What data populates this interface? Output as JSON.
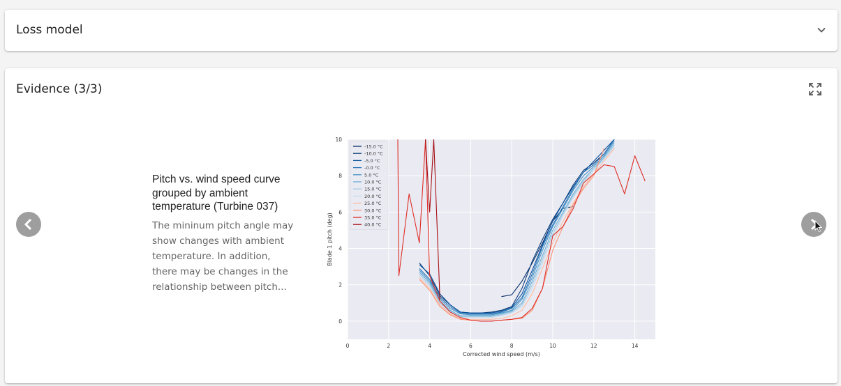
{
  "loss_model": {
    "title": "Loss model"
  },
  "evidence": {
    "title": "Evidence (3/3)",
    "item": {
      "heading": "Pitch vs. wind speed curve grouped by ambient temperature (Turbine 037)",
      "description": "The mininum pitch angle may show changes with ambient temperature. In addition, there may be changes in the relationship between pitch..."
    }
  },
  "icons": {
    "loss_toggle": "chevron-down-icon",
    "fullscreen": "expand-icon",
    "prev": "chevron-left-icon",
    "next": "chevron-right-icon",
    "cursor": "mouse-cursor-icon"
  },
  "colors": {
    "nav_button": "#9e9e9e",
    "plot_background": "#eaeaf2"
  },
  "chart_data": {
    "type": "line",
    "xlabel": "Corrected wind speed (m/s)",
    "ylabel": "Blade 1 pitch (deg)",
    "xlim": [
      0,
      15
    ],
    "ylim": [
      -1,
      10
    ],
    "xticks": [
      0,
      2,
      4,
      6,
      8,
      10,
      12,
      14
    ],
    "yticks": [
      0,
      2,
      4,
      6,
      8,
      10
    ],
    "grid": true,
    "legend_position": "top-left",
    "series": [
      {
        "name": "-15.0 °C",
        "color": "#08306b",
        "x": [
          7.5,
          8,
          8.5,
          9,
          9.5,
          10,
          10.5,
          11
        ],
        "y": [
          1.35,
          1.45,
          2.2,
          3.2,
          4.3,
          5.5,
          6.2,
          6.3
        ]
      },
      {
        "name": "-10.0 °C",
        "color": "#0b3b77",
        "x": [
          3.5,
          4,
          4.5,
          5,
          5.5,
          6,
          6.5,
          7,
          7.5,
          8,
          8.5,
          9,
          9.5,
          10,
          10.5,
          11,
          11.5,
          12,
          12.5,
          13
        ],
        "y": [
          3.2,
          2.5,
          1.4,
          0.9,
          0.5,
          0.45,
          0.45,
          0.5,
          0.6,
          0.8,
          1.8,
          3.3,
          4.5,
          5.6,
          6.5,
          7.5,
          8.3,
          8.7,
          9.2,
          10
        ]
      },
      {
        "name": "-5.0 °C",
        "color": "#08519c",
        "x": [
          3.5,
          4,
          4.5,
          5,
          5.5,
          6,
          6.5,
          7,
          7.5,
          8,
          8.5,
          9,
          9.5,
          10,
          10.5,
          11,
          11.5,
          12,
          12.5,
          13
        ],
        "y": [
          3.1,
          2.6,
          1.5,
          0.9,
          0.5,
          0.45,
          0.45,
          0.45,
          0.55,
          0.75,
          1.5,
          2.8,
          4.2,
          5.5,
          6.5,
          7.4,
          8.2,
          8.8,
          9.4,
          10
        ]
      },
      {
        "name": "-0.0 °C",
        "color": "#2171b5",
        "x": [
          3.5,
          4,
          4.5,
          5,
          5.5,
          6,
          6.5,
          7,
          7.5,
          8,
          8.5,
          9,
          9.5,
          10,
          10.5,
          11,
          11.5,
          12,
          12.5,
          13
        ],
        "y": [
          2.9,
          2.3,
          1.3,
          0.8,
          0.45,
          0.4,
          0.4,
          0.4,
          0.5,
          0.7,
          1.3,
          2.6,
          4.1,
          5.3,
          6.3,
          7.3,
          8.2,
          8.6,
          9.2,
          10
        ]
      },
      {
        "name": "5.0 °C",
        "color": "#4292c6",
        "x": [
          3.5,
          4,
          4.5,
          5,
          5.5,
          6,
          6.5,
          7,
          7.5,
          8,
          8.5,
          9,
          9.5,
          10,
          10.5,
          11,
          11.5,
          12,
          12.5,
          13
        ],
        "y": [
          2.8,
          2.2,
          1.2,
          0.7,
          0.4,
          0.35,
          0.35,
          0.35,
          0.45,
          0.6,
          1.2,
          2.4,
          3.9,
          5.2,
          6.2,
          7.2,
          8.0,
          8.5,
          9.1,
          9.9
        ]
      },
      {
        "name": "10.0 °C",
        "color": "#6baed6",
        "x": [
          3.5,
          4,
          4.5,
          5,
          5.5,
          6,
          6.5,
          7,
          7.5,
          8,
          8.5,
          9,
          9.5,
          10,
          10.5,
          11,
          11.5,
          12,
          12.5,
          13
        ],
        "y": [
          2.7,
          2.1,
          1.1,
          0.6,
          0.3,
          0.3,
          0.3,
          0.3,
          0.4,
          0.55,
          1.0,
          2.2,
          3.6,
          5.0,
          6.0,
          7.0,
          7.8,
          8.4,
          9.0,
          9.8
        ]
      },
      {
        "name": "15.0 °C",
        "color": "#9ecae1",
        "x": [
          3.5,
          4,
          4.5,
          5,
          5.5,
          6,
          6.5,
          7,
          7.5,
          8,
          8.5,
          9,
          9.5,
          10,
          10.5,
          11,
          11.5,
          12,
          12.5,
          13
        ],
        "y": [
          2.6,
          2.0,
          1.0,
          0.55,
          0.25,
          0.25,
          0.25,
          0.25,
          0.35,
          0.5,
          0.9,
          2.0,
          3.4,
          4.8,
          5.9,
          6.9,
          7.7,
          8.4,
          8.9,
          9.7
        ]
      },
      {
        "name": "20.0 °C",
        "color": "#c6dbef",
        "x": [
          3.5,
          4,
          4.5,
          5,
          5.5,
          6,
          6.5,
          7,
          7.5,
          8,
          8.5,
          9,
          9.5,
          10,
          10.5,
          11,
          11.5,
          12,
          12.5,
          13
        ],
        "y": [
          2.5,
          1.9,
          0.9,
          0.5,
          0.2,
          0.2,
          0.2,
          0.2,
          0.3,
          0.45,
          0.8,
          1.8,
          3.2,
          4.6,
          5.8,
          6.8,
          7.6,
          8.3,
          8.9,
          9.6
        ]
      },
      {
        "name": "25.0 °C",
        "color": "#fcbba1",
        "x": [
          3.5,
          4,
          4.5,
          5,
          5.5,
          6,
          6.5,
          7,
          7.5,
          8,
          8.5,
          9,
          9.5,
          10,
          10.5,
          11,
          11.5,
          12,
          12.5,
          13
        ],
        "y": [
          2.4,
          1.8,
          0.9,
          0.4,
          0.15,
          0.1,
          0.1,
          0.1,
          0.15,
          0.3,
          0.6,
          1.5,
          2.9,
          4.3,
          5.5,
          6.5,
          7.4,
          8.1,
          8.8,
          9.5
        ]
      },
      {
        "name": "30.0 °C",
        "color": "#fc9272",
        "x": [
          3.5,
          4,
          4.5,
          5,
          5.5,
          6,
          6.5,
          7,
          7.5,
          8,
          8.5,
          9,
          9.5,
          10,
          10.5,
          11,
          11.5,
          12,
          12.5
        ],
        "y": [
          2.3,
          1.7,
          0.8,
          0.35,
          0.1,
          0.05,
          0.0,
          0.0,
          0.05,
          0.1,
          0.15,
          0.6,
          1.8,
          3.9,
          5.2,
          6.4,
          7.3,
          8.0,
          9.5
        ]
      },
      {
        "name": "35.0 °C",
        "color": "#de2d26",
        "x": [
          2.45,
          2.5,
          3,
          3.5,
          3.8,
          4,
          4.5,
          5,
          5.5,
          6,
          6.5,
          7,
          7.5,
          8,
          8.5,
          9,
          9.5,
          10,
          10.5,
          11,
          11.5,
          12,
          12.5,
          13,
          13.5,
          14,
          14.5
        ],
        "y": [
          10,
          2.5,
          7,
          4.3,
          10,
          2.5,
          1.1,
          0.5,
          0.2,
          0.05,
          0.0,
          0.0,
          0.05,
          0.1,
          0.2,
          0.7,
          1.8,
          4.7,
          5.2,
          6.2,
          7.6,
          8.1,
          8.6,
          8.5,
          7.0,
          9.1,
          7.7
        ]
      },
      {
        "name": "40.0 °C",
        "color": "#a50f15",
        "x": [
          3.8,
          4.0,
          4.2,
          4.5
        ],
        "y": [
          10,
          6,
          10,
          1.2
        ]
      }
    ]
  }
}
